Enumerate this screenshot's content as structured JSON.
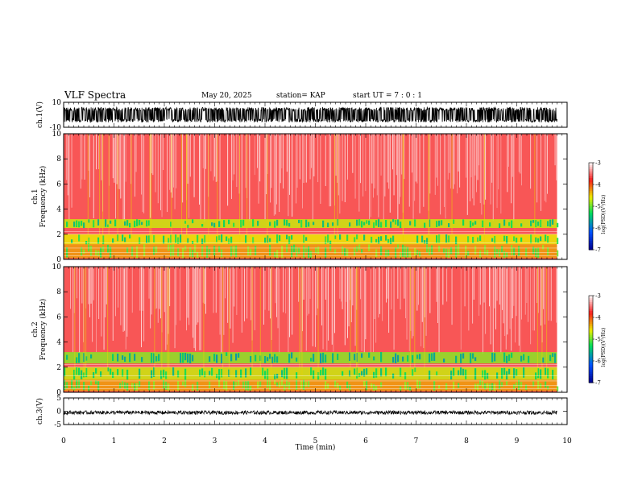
{
  "header": {
    "title": "VLF Spectra",
    "date": "May 20, 2025",
    "station": "station= KAP",
    "start_ut": "start  UT  =   7 : 0  : 1"
  },
  "chart_data": [
    {
      "type": "line",
      "name": "ch1-waveform",
      "ylabel": "ch.1(V)",
      "ylim": [
        -10,
        10
      ],
      "yticks": [
        "10",
        "-10"
      ],
      "xlim": [
        0,
        10
      ],
      "signal_range": [
        -6,
        6
      ]
    },
    {
      "type": "heatmap",
      "name": "ch1-spectrogram",
      "ylabel": "ch.1\nFrequency  (kHz)",
      "ylabel_lines": [
        "ch.1",
        "Frequency  (kHz)"
      ],
      "ylim": [
        0,
        10
      ],
      "yticks": [
        "0",
        "2",
        "4",
        "6",
        "8",
        "10"
      ],
      "xlim": [
        0,
        10
      ],
      "data_end_min": 9.8,
      "colorbar": {
        "label": "log(PSD)(V²/Hz)",
        "range": [
          -7,
          -3
        ],
        "ticks": [
          "-3",
          "-4",
          "-5",
          "-6",
          "-7"
        ]
      },
      "bands_khz": [
        {
          "from": 0.1,
          "to": 1.2,
          "level": -4.3
        },
        {
          "from": 1.2,
          "to": 2.0,
          "level": -4.6
        },
        {
          "from": 2.5,
          "to": 3.2,
          "level": -4.7
        }
      ]
    },
    {
      "type": "heatmap",
      "name": "ch2-spectrogram",
      "ylabel_lines": [
        "ch.2",
        "Frequency  (kHz)"
      ],
      "ylim": [
        0,
        10
      ],
      "yticks": [
        "0",
        "2",
        "4",
        "6",
        "8",
        "10"
      ],
      "xlim": [
        0,
        10
      ],
      "data_end_min": 9.8,
      "colorbar": {
        "label": "log(PSD)(V²/Hz)",
        "range": [
          -7,
          -3
        ],
        "ticks": [
          "-3",
          "-4",
          "-5",
          "-6",
          "-7"
        ]
      },
      "bands_khz": [
        {
          "from": 0.1,
          "to": 1.0,
          "level": -4.3
        },
        {
          "from": 1.0,
          "to": 2.0,
          "level": -4.7
        },
        {
          "from": 2.3,
          "to": 3.2,
          "level": -4.9
        }
      ]
    },
    {
      "type": "line",
      "name": "ch3-waveform",
      "ylabel": "ch.3(V)",
      "ylim": [
        -5,
        5
      ],
      "yticks": [
        "5",
        "0",
        "-5"
      ],
      "xlim": [
        0,
        10
      ],
      "signal_range": [
        -1.2,
        0.2
      ]
    }
  ],
  "xaxis": {
    "label": "Time  (min)",
    "ticks": [
      "0",
      "1",
      "2",
      "3",
      "4",
      "5",
      "6",
      "7",
      "8",
      "9",
      "10"
    ]
  },
  "colors": {
    "background": "#ffffff",
    "axis": "#000000"
  }
}
